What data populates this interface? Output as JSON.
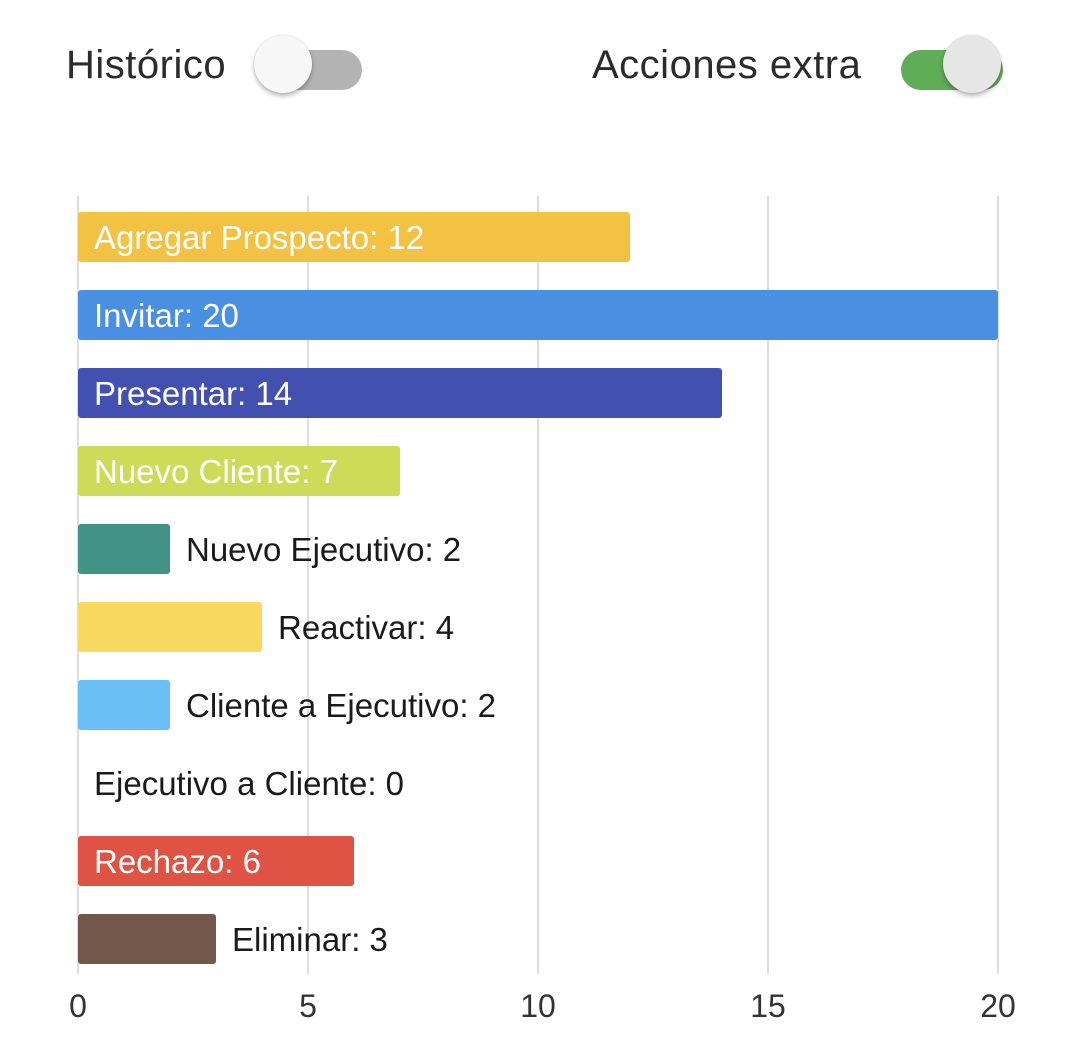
{
  "toggles": {
    "historico": {
      "label": "Histórico",
      "on": false,
      "track_color": "#b3b3b3",
      "knob_color": "#f7f7f7"
    },
    "acciones_extra": {
      "label": "Acciones extra",
      "on": true,
      "track_color": "#5fad56",
      "knob_color": "#e6e6e6"
    }
  },
  "chart_data": {
    "type": "bar",
    "orientation": "horizontal",
    "categories": [
      "Agregar Prospecto",
      "Invitar",
      "Presentar",
      "Nuevo Cliente",
      "Nuevo Ejecutivo",
      "Reactivar",
      "Cliente a Ejecutivo",
      "Ejecutivo a Cliente",
      "Rechazo",
      "Eliminar"
    ],
    "values": [
      12,
      20,
      14,
      7,
      2,
      4,
      2,
      0,
      6,
      3
    ],
    "data_labels": [
      "Agregar Prospecto: 12",
      "Invitar: 20",
      "Presentar: 14",
      "Nuevo Cliente: 7",
      "Nuevo Ejecutivo: 2",
      "Reactivar: 4",
      "Cliente a Ejecutivo: 2",
      "Ejecutivo a Cliente: 0",
      "Rechazo: 6",
      "Eliminar: 3"
    ],
    "colors": [
      "#f4c242",
      "#4a90e2",
      "#4250b0",
      "#cddc58",
      "#429285",
      "#f8d85f",
      "#6bbff7",
      "#9e9e9e",
      "#e05243",
      "#73574b"
    ],
    "xlim": [
      0,
      20
    ],
    "xticks": [
      0,
      5,
      10,
      15,
      20
    ],
    "xtick_labels": [
      "0",
      "5",
      "10",
      "15",
      "20"
    ],
    "grid": true,
    "label_color_inside": "#ffffff",
    "label_color_outside": "#1a1a1a"
  }
}
